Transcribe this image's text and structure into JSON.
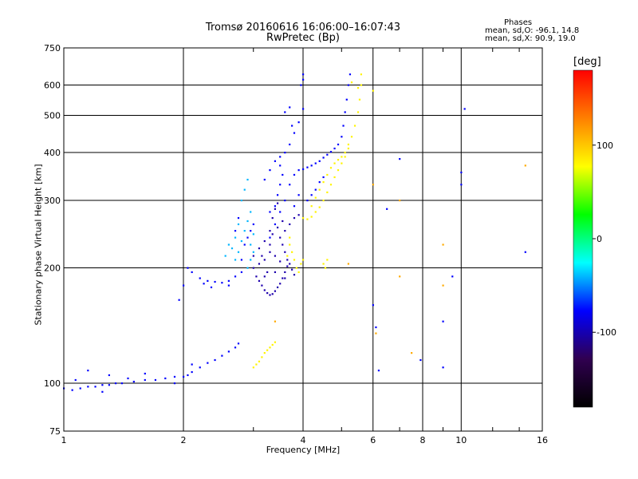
{
  "chart_data": {
    "type": "scatter",
    "title": "Tromsø 20160616 16:06:00–16:07:43",
    "subtitle": "RwPretec (Bp)",
    "xlabel": "Frequency [MHz]",
    "ylabel": "Stationary phase Virtual Height [km]",
    "x_scale": "log",
    "y_scale": "log",
    "xlim": [
      1,
      16
    ],
    "ylim": [
      75,
      750
    ],
    "x_ticks": [
      "1",
      "2",
      "4",
      "6",
      "8",
      "10",
      "16"
    ],
    "y_ticks": [
      "75",
      "100",
      "200",
      "300",
      "400",
      "500",
      "600",
      "750"
    ],
    "grid": true,
    "colorbar": {
      "label": "[deg]",
      "ticks": [
        "100",
        "0",
        "-100"
      ],
      "range": [
        -180,
        180
      ],
      "colors": [
        "#000000",
        "#300050",
        "#0000ff",
        "#00ffff",
        "#00ff00",
        "#ffff00",
        "#ff8000",
        "#ff0000"
      ]
    },
    "annotations": {
      "phases_title": "Phases",
      "o_mode": "mean, sd,O: -96.1, 14.8",
      "x_mode": "mean, sd,X:  90.9, 19.0"
    },
    "series": [
      {
        "phase_deg": -110,
        "points": [
          [
            1.0,
            97
          ],
          [
            1.05,
            96
          ],
          [
            1.1,
            97
          ],
          [
            1.15,
            98
          ],
          [
            1.2,
            98
          ],
          [
            1.25,
            99
          ],
          [
            1.3,
            99
          ],
          [
            1.35,
            100
          ],
          [
            1.4,
            100
          ],
          [
            1.5,
            101
          ],
          [
            1.6,
            102
          ],
          [
            1.7,
            102
          ],
          [
            1.8,
            103
          ],
          [
            1.9,
            104
          ],
          [
            2.0,
            104
          ],
          [
            2.05,
            105
          ],
          [
            2.1,
            107
          ],
          [
            2.2,
            110
          ],
          [
            2.3,
            113
          ],
          [
            2.4,
            115
          ],
          [
            2.5,
            118
          ],
          [
            2.6,
            121
          ],
          [
            2.7,
            124
          ],
          [
            2.75,
            127
          ],
          [
            1.07,
            102
          ],
          [
            1.15,
            108
          ],
          [
            1.3,
            105
          ],
          [
            1.45,
            103
          ],
          [
            1.6,
            106
          ],
          [
            1.9,
            100
          ],
          [
            2.1,
            112
          ],
          [
            1.25,
            95
          ],
          [
            1.95,
            165
          ],
          [
            2.0,
            180
          ],
          [
            2.05,
            200
          ],
          [
            2.1,
            195
          ],
          [
            2.2,
            188
          ],
          [
            2.3,
            185
          ],
          [
            2.4,
            184
          ],
          [
            2.5,
            183
          ],
          [
            2.6,
            185
          ],
          [
            2.7,
            190
          ],
          [
            2.8,
            195
          ],
          [
            2.6,
            180
          ],
          [
            2.35,
            178
          ],
          [
            2.25,
            182
          ],
          [
            2.8,
            210
          ],
          [
            2.85,
            230
          ],
          [
            2.9,
            240
          ],
          [
            2.95,
            250
          ],
          [
            3.0,
            260
          ],
          [
            2.75,
            270
          ],
          [
            2.7,
            250
          ],
          [
            3.3,
            240
          ],
          [
            3.4,
            260
          ],
          [
            3.5,
            280
          ],
          [
            3.6,
            300
          ],
          [
            3.7,
            330
          ],
          [
            3.8,
            350
          ],
          [
            3.9,
            360
          ],
          [
            4.0,
            362
          ],
          [
            4.1,
            366
          ],
          [
            4.2,
            370
          ],
          [
            4.3,
            375
          ],
          [
            4.4,
            380
          ],
          [
            4.5,
            388
          ],
          [
            4.6,
            395
          ],
          [
            4.7,
            402
          ],
          [
            4.8,
            410
          ],
          [
            4.9,
            420
          ],
          [
            5.0,
            440
          ],
          [
            5.05,
            470
          ],
          [
            5.1,
            510
          ],
          [
            5.15,
            550
          ],
          [
            5.2,
            600
          ],
          [
            5.25,
            640
          ],
          [
            3.2,
            340
          ],
          [
            3.3,
            360
          ],
          [
            3.4,
            380
          ],
          [
            3.5,
            390
          ],
          [
            3.6,
            400
          ],
          [
            3.7,
            420
          ],
          [
            3.8,
            450
          ],
          [
            3.9,
            480
          ],
          [
            4.0,
            520
          ],
          [
            4.0,
            620
          ],
          [
            4.0,
            640
          ],
          [
            3.95,
            600
          ],
          [
            3.6,
            510
          ],
          [
            3.7,
            525
          ],
          [
            3.75,
            470
          ],
          [
            4.1,
            300
          ],
          [
            4.2,
            310
          ],
          [
            4.3,
            320
          ],
          [
            4.4,
            335
          ],
          [
            4.5,
            345
          ],
          [
            3.9,
            310
          ],
          [
            3.8,
            290
          ],
          [
            3.3,
            280
          ],
          [
            3.4,
            290
          ],
          [
            3.45,
            310
          ],
          [
            3.5,
            330
          ],
          [
            3.55,
            350
          ],
          [
            3.5,
            370
          ]
        ]
      },
      {
        "phase_deg": -130,
        "points": [
          [
            3.0,
            200
          ],
          [
            3.05,
            190
          ],
          [
            3.1,
            185
          ],
          [
            3.15,
            180
          ],
          [
            3.2,
            175
          ],
          [
            3.25,
            172
          ],
          [
            3.3,
            170
          ],
          [
            3.35,
            171
          ],
          [
            3.4,
            174
          ],
          [
            3.45,
            178
          ],
          [
            3.5,
            182
          ],
          [
            3.55,
            188
          ],
          [
            3.6,
            195
          ],
          [
            3.65,
            202
          ],
          [
            3.0,
            215
          ],
          [
            3.1,
            225
          ],
          [
            3.2,
            235
          ],
          [
            3.3,
            250
          ],
          [
            3.35,
            270
          ],
          [
            3.4,
            285
          ],
          [
            3.45,
            295
          ],
          [
            3.5,
            240
          ],
          [
            3.55,
            230
          ],
          [
            3.6,
            220
          ],
          [
            3.65,
            210
          ],
          [
            3.7,
            205
          ],
          [
            3.75,
            198
          ],
          [
            3.8,
            192
          ],
          [
            3.1,
            205
          ],
          [
            3.2,
            210
          ],
          [
            3.3,
            220
          ],
          [
            3.4,
            215
          ],
          [
            3.5,
            208
          ],
          [
            3.25,
            195
          ],
          [
            3.15,
            215
          ],
          [
            3.6,
            250
          ],
          [
            3.7,
            260
          ],
          [
            3.8,
            270
          ],
          [
            3.9,
            275
          ],
          [
            3.55,
            265
          ],
          [
            3.45,
            255
          ],
          [
            3.35,
            245
          ],
          [
            3.2,
            190
          ],
          [
            3.4,
            195
          ],
          [
            3.6,
            188
          ],
          [
            3.3,
            230
          ]
        ]
      },
      {
        "phase_deg": -60,
        "points": [
          [
            2.7,
            210
          ],
          [
            2.75,
            220
          ],
          [
            2.8,
            235
          ],
          [
            2.85,
            250
          ],
          [
            2.9,
            265
          ],
          [
            2.95,
            280
          ],
          [
            2.8,
            300
          ],
          [
            2.85,
            320
          ],
          [
            2.9,
            340
          ],
          [
            2.75,
            260
          ],
          [
            2.7,
            240
          ],
          [
            2.65,
            225
          ],
          [
            2.95,
            210
          ],
          [
            3.0,
            220
          ],
          [
            2.6,
            230
          ],
          [
            2.55,
            215
          ],
          [
            2.9,
            200
          ],
          [
            2.95,
            230
          ],
          [
            3.0,
            245
          ]
        ]
      },
      {
        "phase_deg": 95,
        "points": [
          [
            4.0,
            270
          ],
          [
            4.1,
            268
          ],
          [
            4.2,
            272
          ],
          [
            4.3,
            280
          ],
          [
            4.4,
            288
          ],
          [
            4.5,
            300
          ],
          [
            4.6,
            315
          ],
          [
            4.7,
            330
          ],
          [
            4.8,
            345
          ],
          [
            4.9,
            360
          ],
          [
            5.0,
            375
          ],
          [
            5.1,
            390
          ],
          [
            5.2,
            410
          ],
          [
            5.3,
            440
          ],
          [
            5.4,
            470
          ],
          [
            5.5,
            510
          ],
          [
            5.55,
            550
          ],
          [
            5.6,
            600
          ],
          [
            5.6,
            640
          ],
          [
            4.2,
            290
          ],
          [
            4.3,
            305
          ],
          [
            4.4,
            320
          ],
          [
            4.5,
            335
          ],
          [
            4.6,
            350
          ],
          [
            4.7,
            365
          ],
          [
            4.8,
            375
          ],
          [
            4.9,
            383
          ],
          [
            5.0,
            390
          ],
          [
            5.1,
            400
          ],
          [
            5.2,
            420
          ],
          [
            3.7,
            230
          ],
          [
            3.75,
            220
          ],
          [
            3.8,
            210
          ],
          [
            3.85,
            200
          ],
          [
            3.9,
            195
          ],
          [
            3.95,
            205
          ],
          [
            4.0,
            210
          ],
          [
            4.5,
            205
          ],
          [
            4.55,
            200
          ],
          [
            4.6,
            210
          ],
          [
            3.65,
            215
          ],
          [
            3.7,
            240
          ],
          [
            3.0,
            110
          ],
          [
            3.05,
            112
          ],
          [
            3.1,
            114
          ],
          [
            3.15,
            117
          ],
          [
            3.2,
            120
          ],
          [
            3.25,
            122
          ],
          [
            3.3,
            124
          ],
          [
            3.35,
            126
          ],
          [
            3.4,
            128
          ],
          [
            5.5,
            590
          ],
          [
            5.3,
            610
          ],
          [
            6.0,
            580
          ]
        ]
      },
      {
        "phase_deg": -110,
        "points": [
          [
            6.0,
            160
          ],
          [
            6.1,
            140
          ],
          [
            6.2,
            108
          ],
          [
            6.5,
            285
          ],
          [
            7.0,
            385
          ],
          [
            7.9,
            115
          ],
          [
            9.0,
            110
          ],
          [
            9.0,
            145
          ],
          [
            9.5,
            190
          ],
          [
            10.0,
            355
          ],
          [
            10.0,
            330
          ],
          [
            10.2,
            520
          ],
          [
            14.5,
            220
          ]
        ]
      },
      {
        "phase_deg": 130,
        "points": [
          [
            6.0,
            330
          ],
          [
            7.0,
            300
          ],
          [
            7.0,
            190
          ],
          [
            7.5,
            120
          ],
          [
            9.0,
            230
          ],
          [
            9.0,
            180
          ],
          [
            14.5,
            370
          ],
          [
            6.1,
            135
          ],
          [
            5.2,
            205
          ],
          [
            3.4,
            145
          ]
        ]
      }
    ]
  }
}
